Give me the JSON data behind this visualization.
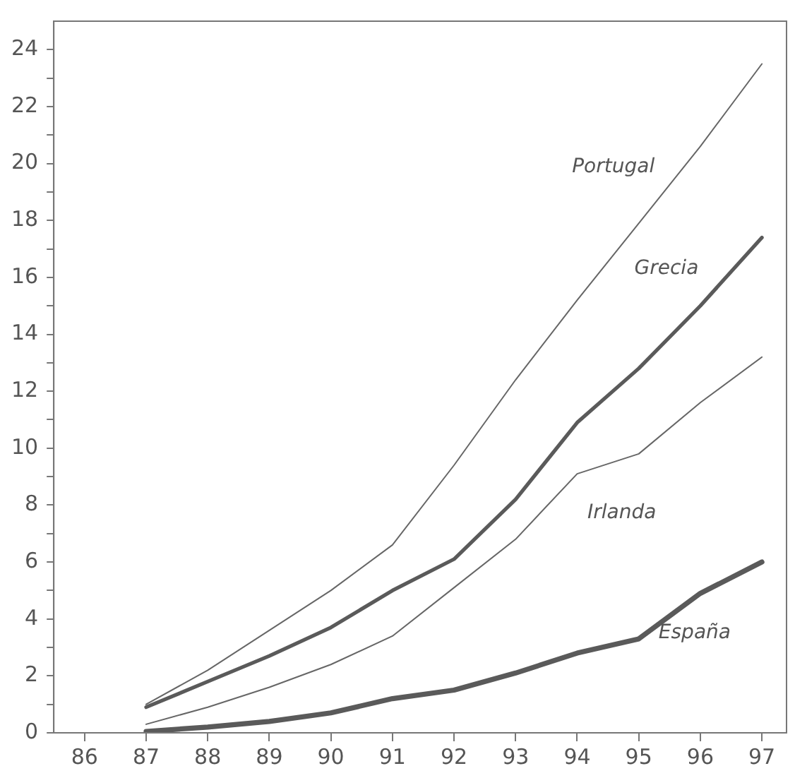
{
  "chart_data": {
    "type": "line",
    "x": [
      87,
      88,
      89,
      90,
      91,
      92,
      93,
      94,
      95,
      96,
      97
    ],
    "series": [
      {
        "name": "Portugal",
        "color": "#666666",
        "values": [
          1.0,
          2.2,
          3.6,
          5.0,
          6.6,
          9.4,
          12.4,
          15.2,
          17.9,
          20.6,
          23.5
        ]
      },
      {
        "name": "Grecia",
        "color": "#5a5a5a",
        "values": [
          0.9,
          1.8,
          2.7,
          3.7,
          5.0,
          6.1,
          8.2,
          10.9,
          12.8,
          15.0,
          17.4
        ]
      },
      {
        "name": "Irlanda",
        "color": "#666666",
        "values": [
          0.3,
          0.9,
          1.6,
          2.4,
          3.4,
          5.1,
          6.8,
          9.1,
          9.8,
          11.6,
          13.2
        ]
      },
      {
        "name": "España",
        "color": "#5a5a5a",
        "values": [
          0.05,
          0.2,
          0.4,
          0.7,
          1.2,
          1.5,
          2.1,
          2.8,
          3.3,
          4.9,
          6.0
        ]
      }
    ],
    "xlim": [
      85.5,
      97.4
    ],
    "xticks": [
      86,
      87,
      88,
      89,
      90,
      91,
      92,
      93,
      94,
      95,
      96,
      97
    ],
    "ylim": [
      0,
      25
    ],
    "yticks": [
      0,
      {
        "value": 1,
        "label": null
      },
      2,
      {
        "value": 3,
        "label": null
      },
      4,
      {
        "value": 5,
        "label": null
      },
      6,
      {
        "value": 7,
        "label": null
      },
      8,
      {
        "value": 9,
        "label": null
      },
      10,
      {
        "value": 11,
        "label": null
      },
      12,
      {
        "value": 13,
        "label": null
      },
      14,
      {
        "value": 15,
        "label": null
      },
      16,
      {
        "value": 17,
        "label": null
      },
      18,
      {
        "value": 19,
        "label": null
      },
      20,
      {
        "value": 21,
        "label": null
      },
      22,
      {
        "value": 23,
        "label": null
      },
      24
    ],
    "grid": false,
    "legend": false,
    "marker": "none",
    "line_style": "solid"
  }
}
